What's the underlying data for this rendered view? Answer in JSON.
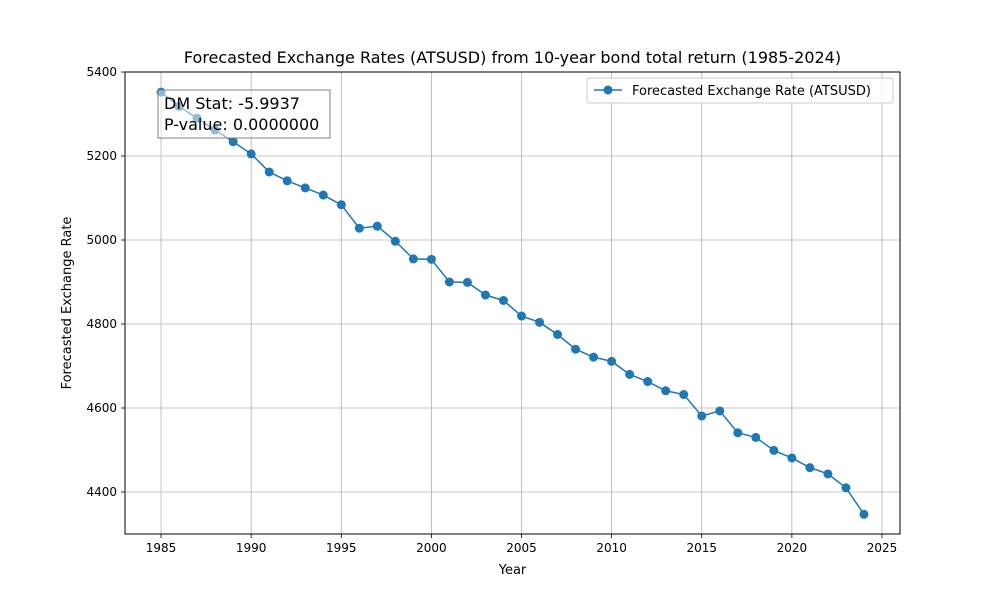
{
  "chart_data": {
    "type": "line",
    "title": "Forecasted Exchange Rates (ATSUSD) from 10-year bond total return (1985-2024)",
    "xlabel": "Year",
    "ylabel": "Forecasted Exchange Rate",
    "xlim": [
      1983,
      2026
    ],
    "ylim": [
      4300,
      5400
    ],
    "xticks": [
      1985,
      1990,
      1995,
      2000,
      2005,
      2010,
      2015,
      2020,
      2025
    ],
    "yticks": [
      4400,
      4600,
      4800,
      5000,
      5200,
      5400
    ],
    "grid": true,
    "legend_position": "top-right",
    "annotation": [
      "DM Stat: -5.9937",
      "P-value: 0.0000000"
    ],
    "series": [
      {
        "name": "Forecasted Exchange Rate (ATSUSD)",
        "color": "#1f77b4",
        "marker": "circle",
        "x": [
          1985,
          1986,
          1987,
          1988,
          1989,
          1990,
          1991,
          1992,
          1993,
          1994,
          1995,
          1996,
          1997,
          1998,
          1999,
          2000,
          2001,
          2002,
          2003,
          2004,
          2005,
          2006,
          2007,
          2008,
          2009,
          2010,
          2011,
          2012,
          2013,
          2014,
          2015,
          2016,
          2017,
          2018,
          2019,
          2020,
          2021,
          2022,
          2023,
          2024
        ],
        "y": [
          5352,
          5318,
          5290,
          5262,
          5234,
          5205,
          5162,
          5141,
          5124,
          5107,
          5084,
          5028,
          5033,
          4997,
          4955,
          4954,
          4900,
          4899,
          4869,
          4856,
          4819,
          4804,
          4775,
          4740,
          4721,
          4711,
          4680,
          4663,
          4641,
          4632,
          4581,
          4593,
          4541,
          4530,
          4499,
          4481,
          4458,
          4443,
          4410,
          4347
        ]
      }
    ]
  }
}
